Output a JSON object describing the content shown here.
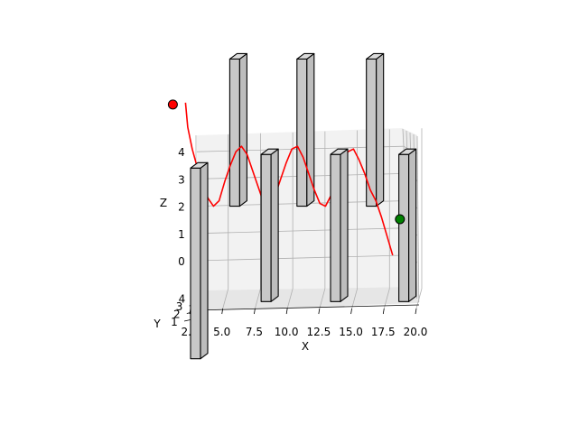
{
  "chart_data": {
    "type": "line",
    "projection": "3d",
    "title": "",
    "xlabel": "X",
    "ylabel": "Y",
    "zlabel": "Z",
    "x_ticks": [
      "2.5",
      "5.0",
      "7.5",
      "10.0",
      "12.5",
      "15.0",
      "17.5",
      "20.0"
    ],
    "y_ticks": [
      "1",
      "2",
      "3",
      "4"
    ],
    "z_ticks": [
      "0",
      "1",
      "2",
      "3",
      "4"
    ],
    "grid": true,
    "colors": {
      "path": "#ff0000",
      "start_marker": "#ff0000",
      "goal_marker": "#008000",
      "obstacle_fill": "#c8c8c8",
      "obstacle_edge": "#000000"
    },
    "path": {
      "x": [
        1.0,
        1.2,
        1.6,
        2.0,
        2.5,
        3.0,
        3.5,
        4.0,
        4.5,
        5.0,
        5.5,
        6.0,
        6.5,
        7.0,
        7.5,
        8.0,
        8.5,
        9.0,
        9.5,
        10.0,
        10.5,
        11.0,
        11.5,
        12.0,
        12.5,
        13.0,
        13.5,
        14.0,
        14.5,
        15.0,
        15.5,
        16.0,
        16.5,
        17.0,
        17.5,
        18.0,
        18.5,
        19.0,
        19.5
      ],
      "z": [
        5.8,
        4.9,
        4.1,
        3.5,
        2.9,
        2.3,
        2.0,
        2.2,
        2.9,
        3.5,
        4.0,
        4.2,
        3.9,
        3.3,
        2.7,
        2.1,
        2.0,
        2.4,
        3.0,
        3.6,
        4.1,
        4.2,
        3.8,
        3.2,
        2.6,
        2.1,
        2.0,
        2.4,
        3.0,
        3.5,
        4.0,
        4.1,
        3.7,
        3.2,
        2.6,
        2.2,
        1.6,
        0.9,
        0.2
      ]
    },
    "start_point": {
      "x": 1.0,
      "z": 5.8
    },
    "goal_point": {
      "x": 19.5,
      "z": 0.2
    },
    "obstacles": [
      {
        "x": 0.0,
        "z_min": -3.6,
        "z_max": 3.6
      },
      {
        "x": 3.5,
        "z_min": 2.0,
        "z_max": 7.6
      },
      {
        "x": 6.3,
        "z_min": -1.5,
        "z_max": 4.1
      },
      {
        "x": 9.5,
        "z_min": 2.0,
        "z_max": 7.6
      },
      {
        "x": 12.5,
        "z_min": -1.5,
        "z_max": 4.1
      },
      {
        "x": 15.7,
        "z_min": 2.0,
        "z_max": 7.6
      },
      {
        "x": 18.6,
        "z_min": -1.5,
        "z_max": 4.1
      }
    ]
  }
}
